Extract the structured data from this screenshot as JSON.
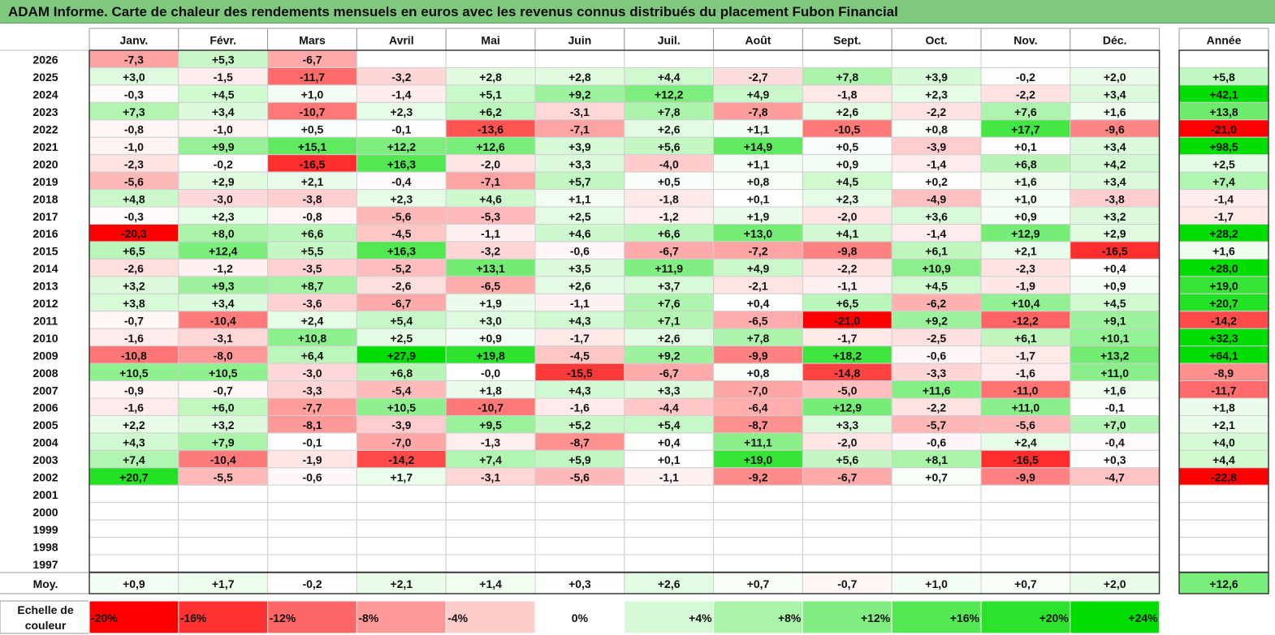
{
  "title": "ADAM Informe. Carte de chaleur des rendements mensuels en euros avec les revenus connus distribués du placement Fubon Financial",
  "colors": {
    "red": "#ff0000",
    "green": "#00dd00",
    "white": "#ffffff",
    "title_bg": "#7fc97f"
  },
  "chart_data": {
    "type": "heatmap",
    "title": "ADAM Informe. Carte de chaleur des rendements mensuels en euros avec les revenus connus distribués du placement Fubon Financial",
    "columns": [
      "Janv.",
      "Févr.",
      "Mars",
      "Avril",
      "Mai",
      "Juin",
      "Juil.",
      "Août",
      "Sept.",
      "Oct.",
      "Nov.",
      "Déc."
    ],
    "year_header": "Année",
    "rows": [
      {
        "year": "2026",
        "values": [
          "-7,3",
          "+5,3",
          "-6,7",
          "",
          "",
          "",
          "",
          "",
          "",
          "",
          "",
          ""
        ],
        "annual": ""
      },
      {
        "year": "2025",
        "values": [
          "+3,0",
          "-1,5",
          "-11,7",
          "-3,2",
          "+2,8",
          "+2,8",
          "+4,4",
          "-2,7",
          "+7,8",
          "+3,9",
          "-0,2",
          "+2,0"
        ],
        "annual": "+5,8"
      },
      {
        "year": "2024",
        "values": [
          "-0,3",
          "+4,5",
          "+1,0",
          "-1,4",
          "+5,1",
          "+9,2",
          "+12,2",
          "+4,9",
          "-1,8",
          "+2,3",
          "-2,2",
          "+3,4"
        ],
        "annual": "+42,1"
      },
      {
        "year": "2023",
        "values": [
          "+7,3",
          "+3,4",
          "-10,7",
          "+2,3",
          "+6,2",
          "-3,1",
          "+7,8",
          "-7,8",
          "+2,6",
          "-2,2",
          "+7,6",
          "+1,6"
        ],
        "annual": "+13,8"
      },
      {
        "year": "2022",
        "values": [
          "-0,8",
          "-1,0",
          "+0,5",
          "-0,1",
          "-13,6",
          "-7,1",
          "+2,6",
          "+1,1",
          "-10,5",
          "+0,8",
          "+17,7",
          "-9,6"
        ],
        "annual": "-21,0"
      },
      {
        "year": "2021",
        "values": [
          "-1,0",
          "+9,9",
          "+15,1",
          "+12,2",
          "+12,6",
          "+3,9",
          "+5,6",
          "+14,9",
          "+0,5",
          "-3,9",
          "+0,1",
          "+3,4"
        ],
        "annual": "+98,5"
      },
      {
        "year": "2020",
        "values": [
          "-2,3",
          "-0,2",
          "-16,5",
          "+16,3",
          "-2,0",
          "+3,3",
          "-4,0",
          "+1,1",
          "+0,9",
          "-1,4",
          "+6,8",
          "+4,2"
        ],
        "annual": "+2,5"
      },
      {
        "year": "2019",
        "values": [
          "-5,6",
          "+2,9",
          "+2,1",
          "-0,4",
          "-7,1",
          "+5,7",
          "+0,5",
          "+0,8",
          "+4,5",
          "+0,2",
          "+1,6",
          "+3,4"
        ],
        "annual": "+7,4"
      },
      {
        "year": "2018",
        "values": [
          "+4,8",
          "-3,0",
          "-3,8",
          "+2,3",
          "+4,6",
          "+1,1",
          "-1,8",
          "+0,1",
          "+2,3",
          "-4,9",
          "+1,0",
          "-3,8"
        ],
        "annual": "-1,4"
      },
      {
        "year": "2017",
        "values": [
          "-0,3",
          "+2,3",
          "-0,8",
          "-5,6",
          "-5,3",
          "+2,5",
          "-1,2",
          "+1,9",
          "-2,0",
          "+3,6",
          "+0,9",
          "+3,2"
        ],
        "annual": "-1,7"
      },
      {
        "year": "2016",
        "values": [
          "-20,3",
          "+8,0",
          "+6,6",
          "-4,5",
          "-1,1",
          "+4,6",
          "+6,6",
          "+13,0",
          "+4,1",
          "-1,4",
          "+12,9",
          "+2,9"
        ],
        "annual": "+28,2"
      },
      {
        "year": "2015",
        "values": [
          "+6,5",
          "+12,4",
          "+5,5",
          "+16,3",
          "-3,2",
          "-0,6",
          "-6,7",
          "-7,2",
          "-9,8",
          "+6,1",
          "+2,1",
          "-16,5"
        ],
        "annual": "+1,6"
      },
      {
        "year": "2014",
        "values": [
          "-2,6",
          "-1,2",
          "-3,5",
          "-5,2",
          "+13,1",
          "+3,5",
          "+11,9",
          "+4,9",
          "-2,2",
          "+10,9",
          "-2,3",
          "+0,4"
        ],
        "annual": "+28,0"
      },
      {
        "year": "2013",
        "values": [
          "+3,2",
          "+9,3",
          "+8,7",
          "-2,6",
          "-6,5",
          "+2,6",
          "+3,7",
          "-2,1",
          "-1,1",
          "+4,5",
          "-1,9",
          "+0,9"
        ],
        "annual": "+19,0"
      },
      {
        "year": "2012",
        "values": [
          "+3,8",
          "+3,4",
          "-3,6",
          "-6,7",
          "+1,9",
          "-1,1",
          "+7,6",
          "+0,4",
          "+6,5",
          "-6,2",
          "+10,4",
          "+4,5"
        ],
        "annual": "+20,7"
      },
      {
        "year": "2011",
        "values": [
          "-0,7",
          "-10,4",
          "+2,4",
          "+5,4",
          "+3,0",
          "+4,3",
          "+7,1",
          "-6,5",
          "-21,0",
          "+9,2",
          "-12,2",
          "+9,1"
        ],
        "annual": "-14,2"
      },
      {
        "year": "2010",
        "values": [
          "-1,6",
          "-3,1",
          "+10,8",
          "+2,5",
          "+0,9",
          "-1,7",
          "+2,6",
          "+7,8",
          "-1,7",
          "-2,5",
          "+6,1",
          "+10,1"
        ],
        "annual": "+32,3"
      },
      {
        "year": "2009",
        "values": [
          "-10,8",
          "-8,0",
          "+6,4",
          "+27,9",
          "+19,8",
          "-4,5",
          "+9,2",
          "-9,9",
          "+18,2",
          "-0,6",
          "-1,7",
          "+13,2"
        ],
        "annual": "+64,1"
      },
      {
        "year": "2008",
        "values": [
          "+10,5",
          "+10,5",
          "-3,0",
          "+6,8",
          "-0,0",
          "-15,5",
          "-6,7",
          "+0,8",
          "-14,8",
          "-3,3",
          "-1,6",
          "+11,0"
        ],
        "annual": "-8,9"
      },
      {
        "year": "2007",
        "values": [
          "-0,9",
          "-0,7",
          "-3,3",
          "-5,4",
          "+1,8",
          "+4,3",
          "+3,3",
          "-7,0",
          "-5,0",
          "+11,6",
          "-11,0",
          "+1,6"
        ],
        "annual": "-11,7"
      },
      {
        "year": "2006",
        "values": [
          "-1,6",
          "+6,0",
          "-7,7",
          "+10,5",
          "-10,7",
          "-1,6",
          "-4,4",
          "-6,4",
          "+12,9",
          "-2,2",
          "+11,0",
          "-0,1"
        ],
        "annual": "+1,8"
      },
      {
        "year": "2005",
        "values": [
          "+2,2",
          "+3,2",
          "-8,1",
          "-3,9",
          "+9,5",
          "+5,2",
          "+5,4",
          "-8,7",
          "+3,3",
          "-5,7",
          "-5,6",
          "+7,0"
        ],
        "annual": "+2,1"
      },
      {
        "year": "2004",
        "values": [
          "+4,3",
          "+7,9",
          "-0,1",
          "-7,0",
          "-1,3",
          "-8,7",
          "+0,4",
          "+11,1",
          "-2,0",
          "-0,6",
          "+2,4",
          "-0,4"
        ],
        "annual": "+4,0"
      },
      {
        "year": "2003",
        "values": [
          "+7,4",
          "-10,4",
          "-1,9",
          "-14,2",
          "+7,4",
          "+5,9",
          "+0,1",
          "+19,0",
          "+5,6",
          "+8,1",
          "-16,5",
          "+0,3"
        ],
        "annual": "+4,4"
      },
      {
        "year": "2002",
        "values": [
          "+20,7",
          "-5,5",
          "-0,6",
          "+1,7",
          "-3,1",
          "-5,6",
          "-1,1",
          "-9,2",
          "-6,7",
          "+0,7",
          "-9,9",
          "-4,7"
        ],
        "annual": "-22,8"
      },
      {
        "year": "2001",
        "values": [
          "",
          "",
          "",
          "",
          "",
          "",
          "",
          "",
          "",
          "",
          "",
          ""
        ],
        "annual": ""
      },
      {
        "year": "2000",
        "values": [
          "",
          "",
          "",
          "",
          "",
          "",
          "",
          "",
          "",
          "",
          "",
          ""
        ],
        "annual": ""
      },
      {
        "year": "1999",
        "values": [
          "",
          "",
          "",
          "",
          "",
          "",
          "",
          "",
          "",
          "",
          "",
          ""
        ],
        "annual": ""
      },
      {
        "year": "1998",
        "values": [
          "",
          "",
          "",
          "",
          "",
          "",
          "",
          "",
          "",
          "",
          "",
          ""
        ],
        "annual": ""
      },
      {
        "year": "1997",
        "values": [
          "",
          "",
          "",
          "",
          "",
          "",
          "",
          "",
          "",
          "",
          "",
          ""
        ],
        "annual": ""
      }
    ],
    "average": {
      "label": "Moy.",
      "values": [
        "+0,9",
        "+1,7",
        "-0,2",
        "+2,1",
        "+1,4",
        "+0,3",
        "+2,6",
        "+0,7",
        "-0,7",
        "+1,0",
        "+0,7",
        "+2,0"
      ],
      "annual": "+12,6"
    },
    "scale": {
      "label_line1": "Echelle de",
      "label_line2": "couleur",
      "steps": [
        {
          "label": "-20%",
          "value": -20
        },
        {
          "label": "-16%",
          "value": -16
        },
        {
          "label": "-12%",
          "value": -12
        },
        {
          "label": "-8%",
          "value": -8
        },
        {
          "label": "-4%",
          "value": -4
        },
        {
          "label": "0%",
          "value": 0
        },
        {
          "label": "+4%",
          "value": 4
        },
        {
          "label": "+8%",
          "value": 8
        },
        {
          "label": "+12%",
          "value": 12
        },
        {
          "label": "+16%",
          "value": 16
        },
        {
          "label": "+20%",
          "value": 20
        },
        {
          "label": "+24%",
          "value": 24
        }
      ]
    }
  }
}
